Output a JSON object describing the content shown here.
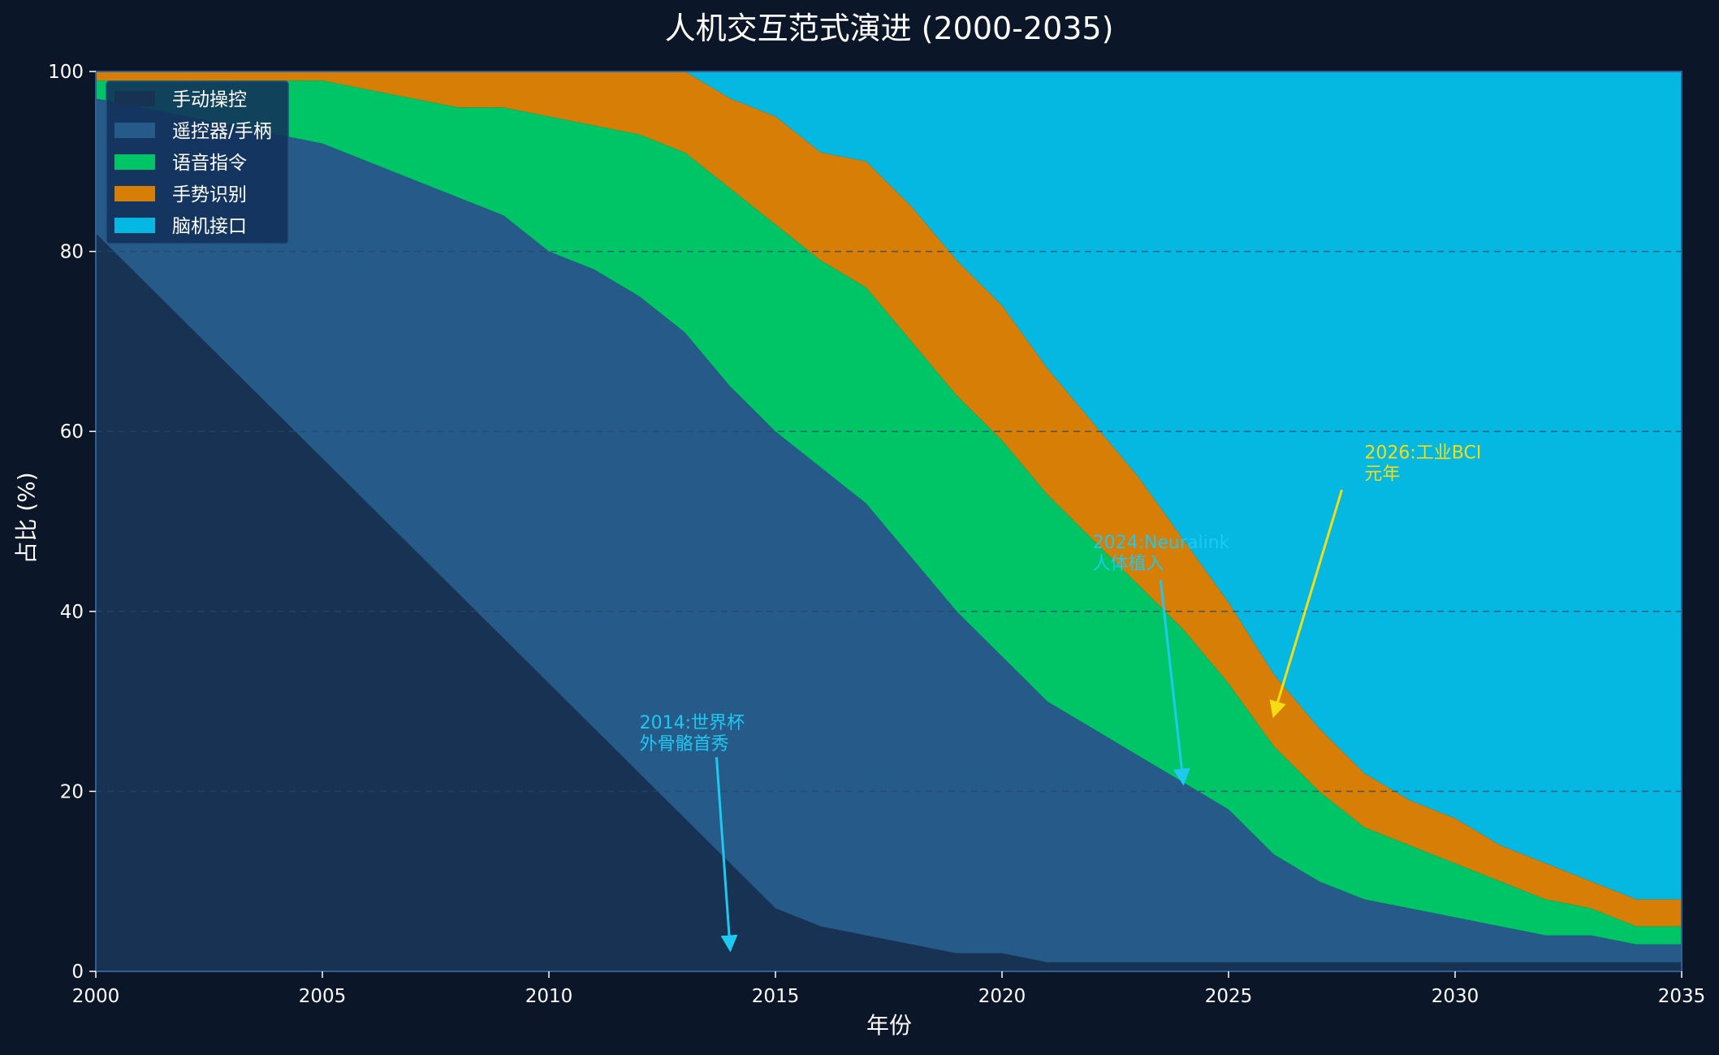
{
  "colors": {
    "background": "#0b1628",
    "plot_frame": "#2f5f93",
    "grid": "#27466a"
  },
  "chart_data": {
    "type": "area",
    "stacked": true,
    "title": "人机交互范式演进 (2000-2035)",
    "xlabel": "年份",
    "ylabel": "占比 (%)",
    "xlim": [
      2000,
      2035
    ],
    "ylim": [
      0,
      100
    ],
    "xticks": [
      2000,
      2005,
      2010,
      2015,
      2020,
      2025,
      2030,
      2035
    ],
    "yticks": [
      0,
      20,
      40,
      60,
      80,
      100
    ],
    "grid": "horizontal dashed",
    "legend_position": "top-left",
    "x": [
      2000,
      2001,
      2002,
      2003,
      2004,
      2005,
      2006,
      2007,
      2008,
      2009,
      2010,
      2011,
      2012,
      2013,
      2014,
      2015,
      2016,
      2017,
      2018,
      2019,
      2020,
      2021,
      2022,
      2023,
      2024,
      2025,
      2026,
      2027,
      2028,
      2029,
      2030,
      2031,
      2032,
      2033,
      2034,
      2035
    ],
    "series": [
      {
        "name": "手动操控",
        "color": "#183253",
        "values": [
          82,
          77,
          72,
          67,
          62,
          57,
          52,
          47,
          42,
          37,
          32,
          27,
          22,
          17,
          12,
          7,
          5,
          4,
          3,
          2,
          2,
          1,
          1,
          1,
          1,
          1,
          1,
          1,
          1,
          1,
          1,
          1,
          1,
          1,
          1,
          1
        ]
      },
      {
        "name": "遥控器/手柄",
        "color": "#265a88",
        "values": [
          15,
          19,
          23,
          27,
          31,
          35,
          38,
          41,
          44,
          47,
          48,
          51,
          53,
          54,
          53,
          53,
          51,
          48,
          43,
          38,
          33,
          29,
          26,
          23,
          20,
          17,
          12,
          9,
          7,
          6,
          5,
          4,
          3,
          3,
          2,
          2
        ]
      },
      {
        "name": "语音指令",
        "color": "#00c567",
        "values": [
          2,
          3,
          4,
          5,
          6,
          7,
          8,
          9,
          10,
          12,
          15,
          16,
          18,
          20,
          22,
          23,
          23,
          24,
          24,
          24,
          24,
          23,
          21,
          19,
          17,
          14,
          12,
          10,
          8,
          7,
          6,
          5,
          4,
          3,
          2,
          2
        ]
      },
      {
        "name": "手势识别",
        "color": "#d67e06",
        "values": [
          1,
          1,
          1,
          1,
          1,
          1,
          2,
          3,
          4,
          4,
          5,
          6,
          7,
          9,
          10,
          12,
          12,
          14,
          15,
          15,
          15,
          14,
          13,
          12,
          10,
          9,
          8,
          7,
          6,
          5,
          5,
          4,
          4,
          3,
          3,
          3
        ]
      },
      {
        "name": "脑机接口",
        "color": "#05b8e1",
        "values": [
          0,
          0,
          0,
          0,
          0,
          0,
          0,
          0,
          0,
          0,
          0,
          0,
          0,
          0,
          3,
          5,
          9,
          10,
          15,
          21,
          26,
          33,
          39,
          45,
          52,
          59,
          67,
          73,
          78,
          81,
          83,
          86,
          88,
          90,
          92,
          92
        ]
      }
    ],
    "annotations": [
      {
        "text_line1": "2014:世界杯",
        "text_line2": "外骨骼首秀",
        "color": "#1ec8f0",
        "arrow_from": [
          2013.7,
          23.8
        ],
        "arrow_to": [
          2014,
          2.5
        ],
        "text_at": [
          2012,
          27
        ]
      },
      {
        "text_line1": "2024:Neuralink",
        "text_line2": "人体植入",
        "color": "#1ec8f0",
        "arrow_from": [
          2023.5,
          43.5
        ],
        "arrow_to": [
          2024,
          21
        ],
        "text_at": [
          2022,
          47
        ]
      },
      {
        "text_line1": "2026:工业BCI",
        "text_line2": "元年",
        "color": "#f5dd12",
        "arrow_from": [
          2027.5,
          53.5
        ],
        "arrow_to": [
          2026,
          28.5
        ],
        "text_at": [
          2028,
          57
        ]
      }
    ]
  }
}
